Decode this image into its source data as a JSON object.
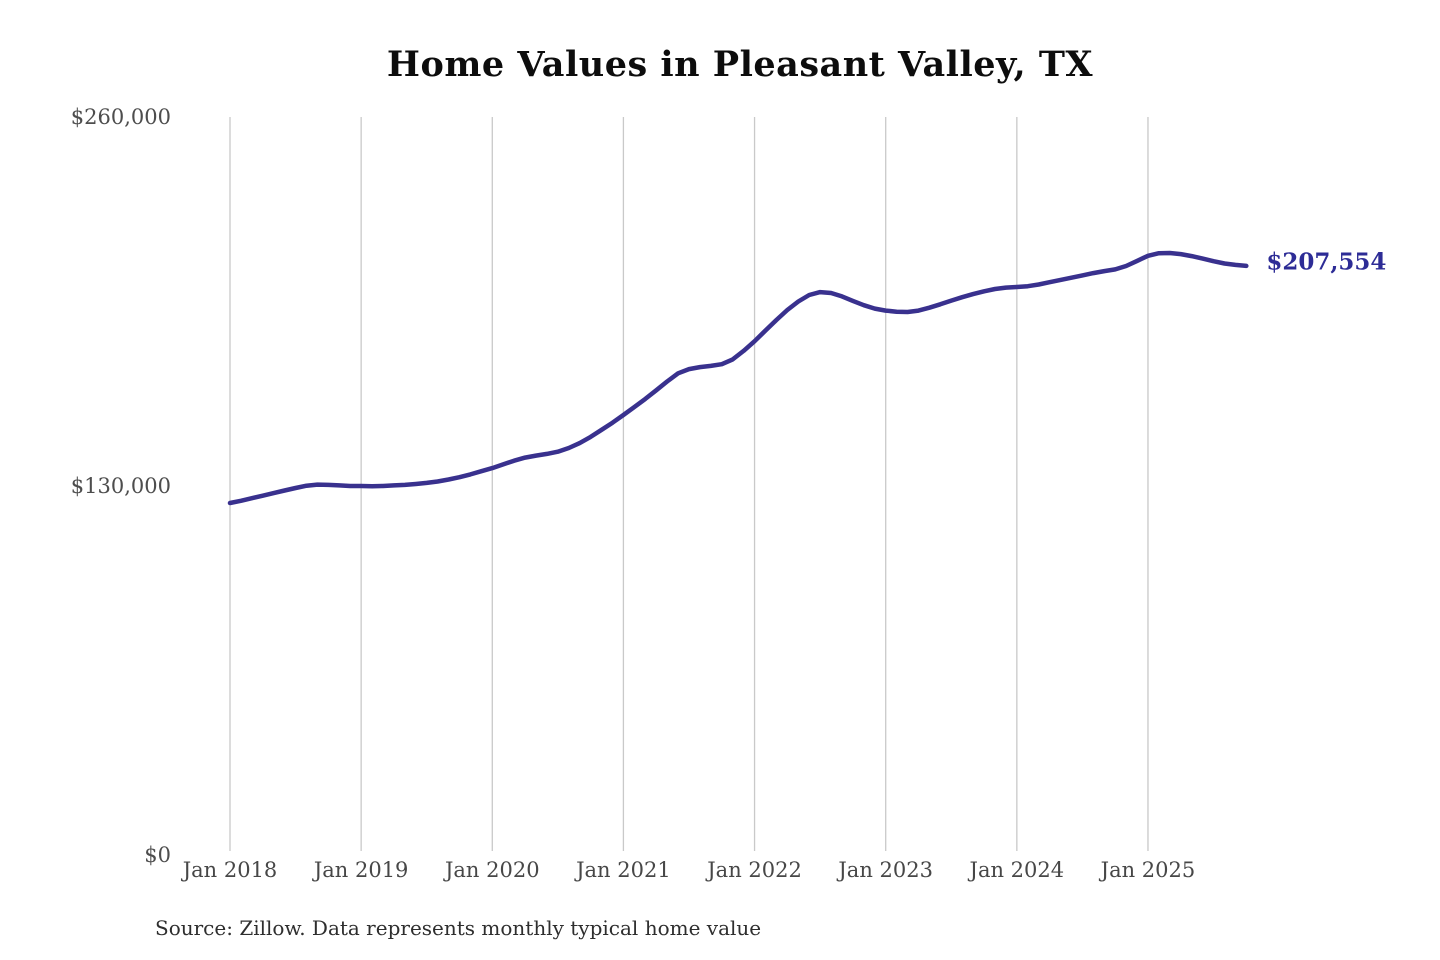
{
  "title": "Home Values in Pleasant Valley, TX",
  "source_note": "Source: Zillow. Data represents monthly typical home value",
  "end_value_label": "$207,554",
  "colors": {
    "line": "#39318e",
    "end_label": "#2d2c96",
    "gridline": "#c9c9c9",
    "title_text": "#0d0d0d",
    "axis_text": "#4d4d4d",
    "source_text": "#2e2e2e",
    "background": "#ffffff"
  },
  "chart_data": {
    "type": "line",
    "title": "Home Values in Pleasant Valley, TX",
    "xlabel": "",
    "ylabel": "",
    "ylim": [
      0,
      260000
    ],
    "grid": "vertical-only",
    "legend": "none",
    "x_start_month": "Jan 2018",
    "x_end_month": "Oct 2025",
    "y_ticks": [
      {
        "value": 0,
        "label": "$0"
      },
      {
        "value": 130000,
        "label": "$130,000"
      },
      {
        "value": 260000,
        "label": "$260,000"
      }
    ],
    "x_ticks": [
      {
        "month_index": 0,
        "label": "Jan 2018"
      },
      {
        "month_index": 12,
        "label": "Jan 2019"
      },
      {
        "month_index": 24,
        "label": "Jan 2020"
      },
      {
        "month_index": 36,
        "label": "Jan 2021"
      },
      {
        "month_index": 48,
        "label": "Jan 2022"
      },
      {
        "month_index": 60,
        "label": "Jan 2023"
      },
      {
        "month_index": 72,
        "label": "Jan 2024"
      },
      {
        "month_index": 84,
        "label": "Jan 2025"
      }
    ],
    "series": [
      {
        "name": "Monthly typical home value",
        "end_label": "$207,554",
        "end_value": 207554,
        "values": [
          124000,
          124800,
          125700,
          126600,
          127500,
          128400,
          129300,
          130100,
          130500,
          130400,
          130200,
          130000,
          130000,
          129900,
          130000,
          130200,
          130400,
          130700,
          131100,
          131600,
          132300,
          133100,
          134100,
          135200,
          136300,
          137600,
          138900,
          140000,
          140700,
          141300,
          142100,
          143400,
          145100,
          147300,
          149800,
          152300,
          155000,
          157800,
          160700,
          163700,
          166800,
          169700,
          171200,
          171900,
          172300,
          172900,
          174600,
          177600,
          181000,
          184800,
          188500,
          192000,
          195000,
          197300,
          198300,
          198000,
          196800,
          195200,
          193700,
          192500,
          191800,
          191400,
          191300,
          191800,
          192800,
          194000,
          195300,
          196500,
          197600,
          198600,
          199400,
          199900,
          200100,
          200400,
          201000,
          201800,
          202600,
          203400,
          204200,
          205000,
          205700,
          206300,
          207500,
          209300,
          211100,
          212000,
          212100,
          211700,
          211000,
          210100,
          209200,
          208400,
          207900,
          207554
        ]
      }
    ]
  }
}
